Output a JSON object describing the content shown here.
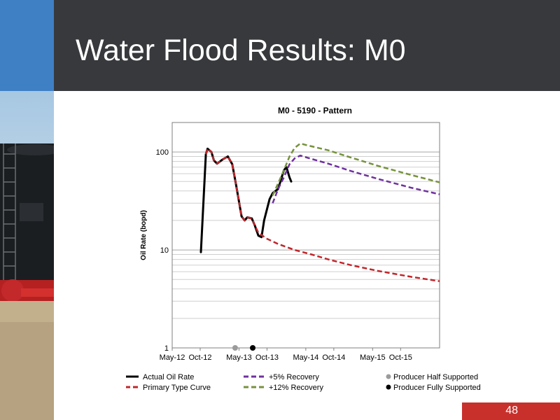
{
  "slide": {
    "title": "Water Flood Results: M0",
    "page_number": "48"
  },
  "colors": {
    "header_bg": "#37393c",
    "accent_blue": "#3f7fc4",
    "page_badge": "#c8302c",
    "actual": "#000000",
    "primary": "#c0262b",
    "recovery5": "#7030a0",
    "recovery12": "#76923c",
    "half_supported": "#9b9b9b",
    "fully_supported": "#000000"
  },
  "chart_data": {
    "type": "line",
    "title": "M0 - 5190 - Pattern",
    "xlabel": "",
    "ylabel": "Oil Rate (bopd)",
    "y_scale": "log",
    "ylim": [
      1,
      200
    ],
    "xlim": [
      "2012-05",
      "2016-05"
    ],
    "x_ticks": [
      "May-12",
      "Oct-12",
      "May-13",
      "Oct-13",
      "May-14",
      "Oct-14",
      "May-15",
      "Oct-15"
    ],
    "y_ticks": [
      "1",
      "10",
      "100"
    ],
    "grid": "horizontal-minor",
    "legend_position": "bottom",
    "series": [
      {
        "name": "Actual Oil Rate",
        "color": "#000000",
        "style": "solid",
        "points": [
          [
            "2012-10-05",
            9.5
          ],
          [
            "2012-11-01",
            95
          ],
          [
            "2012-11-10",
            108
          ],
          [
            "2012-12-01",
            100
          ],
          [
            "2012-12-15",
            82
          ],
          [
            "2013-01-01",
            76
          ],
          [
            "2013-02-01",
            84
          ],
          [
            "2013-03-01",
            90
          ],
          [
            "2013-03-25",
            75
          ],
          [
            "2013-04-15",
            46
          ],
          [
            "2013-05-15",
            22
          ],
          [
            "2013-06-01",
            20
          ],
          [
            "2013-06-15",
            21.5
          ],
          [
            "2013-07-10",
            21
          ],
          [
            "2013-07-25",
            18
          ],
          [
            "2013-08-15",
            14
          ],
          [
            "2013-09-01",
            13.5
          ],
          [
            "2013-09-15",
            20
          ],
          [
            "2013-10-15",
            33
          ],
          [
            "2013-11-01",
            38
          ],
          [
            "2013-12-01",
            42
          ],
          [
            "2014-01-01",
            65
          ],
          [
            "2014-01-15",
            70
          ],
          [
            "2014-02-01",
            55
          ],
          [
            "2014-02-10",
            50
          ]
        ]
      },
      {
        "name": "Primary Type Curve",
        "color": "#c0262b",
        "style": "dashed",
        "points": [
          [
            "2012-11-01",
            95
          ],
          [
            "2012-11-10",
            108
          ],
          [
            "2012-12-01",
            100
          ],
          [
            "2012-12-15",
            82
          ],
          [
            "2013-01-01",
            76
          ],
          [
            "2013-02-01",
            84
          ],
          [
            "2013-03-01",
            90
          ],
          [
            "2013-03-25",
            75
          ],
          [
            "2013-04-15",
            46
          ],
          [
            "2013-05-15",
            22
          ],
          [
            "2013-06-01",
            20
          ],
          [
            "2013-06-15",
            21.5
          ],
          [
            "2013-07-10",
            21
          ],
          [
            "2013-07-25",
            18
          ],
          [
            "2013-08-15",
            15
          ],
          [
            "2013-09-01",
            14.2
          ],
          [
            "2013-10-01",
            13
          ],
          [
            "2013-12-01",
            11.5
          ],
          [
            "2014-03-01",
            10
          ],
          [
            "2014-06-01",
            9
          ],
          [
            "2014-09-01",
            8
          ],
          [
            "2015-01-01",
            7
          ],
          [
            "2015-06-01",
            6.1
          ],
          [
            "2015-12-01",
            5.3
          ],
          [
            "2016-05-01",
            4.8
          ]
        ]
      },
      {
        "name": "+5% Recovery",
        "color": "#7030a0",
        "style": "dashed",
        "points": [
          [
            "2013-11-01",
            30
          ],
          [
            "2013-12-01",
            42
          ],
          [
            "2014-01-01",
            55
          ],
          [
            "2014-02-01",
            75
          ],
          [
            "2014-03-01",
            86
          ],
          [
            "2014-04-01",
            92
          ],
          [
            "2014-06-01",
            85
          ],
          [
            "2014-09-01",
            76
          ],
          [
            "2015-01-01",
            64
          ],
          [
            "2015-06-01",
            53
          ],
          [
            "2015-12-01",
            43
          ],
          [
            "2016-05-01",
            37
          ]
        ]
      },
      {
        "name": "+12% Recovery",
        "color": "#76923c",
        "style": "dashed",
        "points": [
          [
            "2013-11-01",
            36
          ],
          [
            "2013-12-01",
            48
          ],
          [
            "2014-01-01",
            65
          ],
          [
            "2014-02-01",
            90
          ],
          [
            "2014-03-01",
            110
          ],
          [
            "2014-04-01",
            122
          ],
          [
            "2014-05-01",
            118
          ],
          [
            "2014-09-01",
            104
          ],
          [
            "2015-01-01",
            88
          ],
          [
            "2015-06-01",
            72
          ],
          [
            "2015-12-01",
            58
          ],
          [
            "2016-05-01",
            49
          ]
        ]
      }
    ],
    "markers": [
      {
        "name": "Producer Half Supported",
        "color": "#9b9b9b",
        "x": "2013-04-10",
        "y": 1
      },
      {
        "name": "Producer Fully Supported",
        "color": "#000000",
        "x": "2013-07-15",
        "y": 1
      }
    ]
  }
}
